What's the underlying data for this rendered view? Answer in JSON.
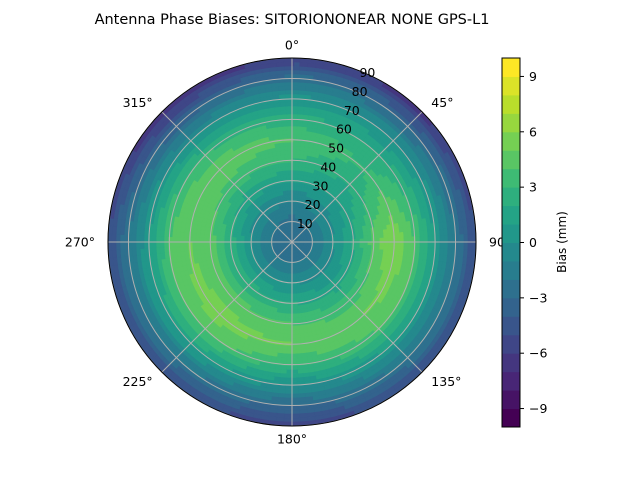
{
  "chart_data": {
    "type": "heatmap",
    "projection": "polar",
    "title": "Antenna Phase Biases: SITORIONONEAR   NONE GPS-L1",
    "angular_axis": {
      "zero_location": "top",
      "direction": "clockwise",
      "tick_labels": [
        {
          "deg": 0,
          "label": "0°"
        },
        {
          "deg": 45,
          "label": "45°"
        },
        {
          "deg": 90,
          "label": "90°"
        },
        {
          "deg": 135,
          "label": "135°"
        },
        {
          "deg": 180,
          "label": "180°"
        },
        {
          "deg": 225,
          "label": "225°"
        },
        {
          "deg": 270,
          "label": "270°"
        },
        {
          "deg": 315,
          "label": "315°"
        }
      ]
    },
    "radial_axis": {
      "range": [
        0,
        90
      ],
      "tick_values": [
        10,
        20,
        30,
        40,
        50,
        60,
        70,
        80,
        90
      ],
      "tick_labels": [
        "10",
        "20",
        "30",
        "40",
        "50",
        "60",
        "70",
        "80",
        "90"
      ]
    },
    "grid": true,
    "colorbar": {
      "label": "Bias (mm)",
      "colormap": "viridis",
      "range": [
        -10,
        10
      ],
      "level_step": 1,
      "tick_values": [
        -9,
        -6,
        -3,
        0,
        3,
        6,
        9
      ],
      "tick_labels": [
        "−9",
        "−6",
        "−3",
        "0",
        "3",
        "6",
        "9"
      ],
      "placement": "right"
    },
    "samples": {
      "zenith_deg": [
        0,
        10,
        20,
        30,
        40,
        50,
        60,
        70,
        80,
        90
      ],
      "azimuth_deg": [
        0,
        45,
        90,
        135,
        180,
        225,
        270,
        315
      ],
      "bias_mm": [
        [
          -3.0,
          -2.5,
          -1.0,
          1.0,
          3.0,
          4.0,
          2.5,
          0.5,
          -2.5,
          -6.0
        ],
        [
          -3.0,
          -2.0,
          -0.5,
          1.0,
          2.0,
          3.0,
          2.0,
          0.0,
          -3.0,
          -6.5
        ],
        [
          -3.0,
          -2.0,
          0.0,
          2.0,
          4.5,
          6.0,
          4.0,
          1.0,
          -2.0,
          -5.0
        ],
        [
          -3.0,
          -2.0,
          -0.5,
          1.5,
          3.5,
          5.0,
          4.0,
          1.0,
          -2.0,
          -5.0
        ],
        [
          -3.0,
          -2.0,
          0.0,
          2.0,
          4.0,
          5.0,
          3.0,
          0.0,
          -3.0,
          -5.5
        ],
        [
          -3.0,
          -2.0,
          0.0,
          2.5,
          4.5,
          5.5,
          4.5,
          1.5,
          -2.0,
          -5.0
        ],
        [
          -3.0,
          -2.0,
          0.0,
          2.5,
          4.5,
          5.0,
          4.0,
          1.0,
          -2.0,
          -5.0
        ],
        [
          -3.0,
          -2.0,
          -0.5,
          1.5,
          3.5,
          5.0,
          3.0,
          0.0,
          -3.5,
          -7.0
        ]
      ]
    }
  }
}
